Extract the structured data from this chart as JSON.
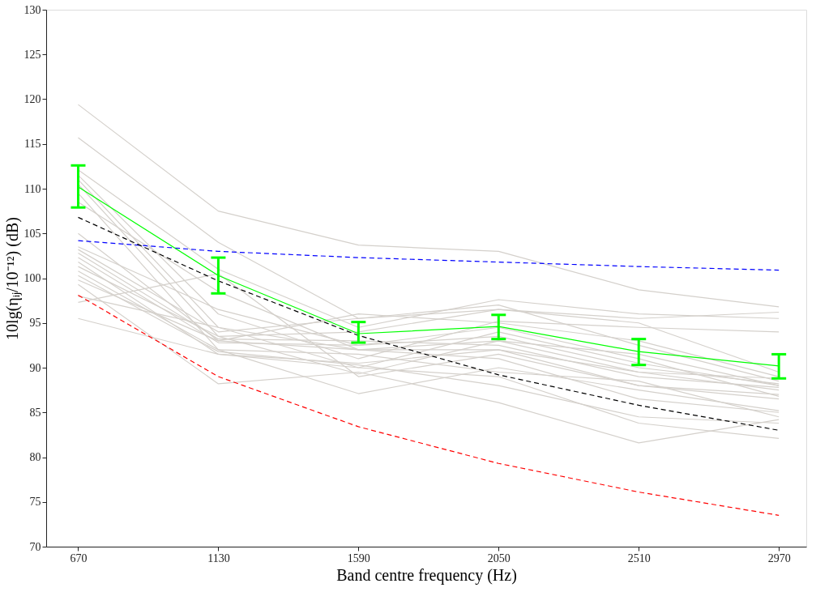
{
  "chart_data": {
    "type": "line",
    "xlabel": "Band centre frequency (Hz)",
    "ylabel": "10lg(ηᵢⱼ/10⁻¹²) (dB)",
    "x": [
      670,
      1130,
      1590,
      2050,
      2510,
      2970
    ],
    "xlim": [
      565,
      3060
    ],
    "xticks": [
      670,
      1130,
      1590,
      2050,
      2510,
      2970
    ],
    "ylim": [
      70,
      130
    ],
    "yticks": [
      70,
      75,
      80,
      85,
      90,
      95,
      100,
      105,
      110,
      115,
      120,
      125,
      130
    ],
    "grid": false,
    "legend": false,
    "marker": "none",
    "series": [
      {
        "color": "#d4d0cb",
        "line_style": "solid",
        "values": [
          119.4,
          107.5,
          103.7,
          103.0,
          98.7,
          96.8
        ]
      },
      {
        "color": "#d4d0cb",
        "line_style": "solid",
        "values": [
          115.7,
          104.0,
          95.5,
          96.5,
          95.5,
          96.2
        ]
      },
      {
        "color": "#d4d0cb",
        "line_style": "solid",
        "values": [
          112.1,
          101.0,
          94.5,
          97.6,
          96.0,
          95.5
        ]
      },
      {
        "color": "#d4d0cb",
        "line_style": "solid",
        "values": [
          111.5,
          96.0,
          91.0,
          95.2,
          94.5,
          94.0
        ]
      },
      {
        "color": "#d4d0cb",
        "line_style": "solid",
        "values": [
          111.0,
          94.5,
          90.0,
          94.0,
          90.5,
          88.0
        ]
      },
      {
        "color": "#d4d0cb",
        "line_style": "solid",
        "values": [
          110.5,
          93.5,
          89.3,
          93.0,
          89.5,
          87.5
        ]
      },
      {
        "color": "#d4d0cb",
        "line_style": "solid",
        "values": [
          109.5,
          92.0,
          87.1,
          90.0,
          87.5,
          85.2
        ]
      },
      {
        "color": "#d4d0cb",
        "line_style": "solid",
        "values": [
          105.0,
          93.0,
          96.0,
          95.0,
          93.0,
          89.0
        ]
      },
      {
        "color": "#d4d0cb",
        "line_style": "solid",
        "values": [
          103.2,
          94.0,
          95.5,
          97.0,
          92.5,
          88.5
        ]
      },
      {
        "color": "#d4d0cb",
        "line_style": "solid",
        "values": [
          102.8,
          93.2,
          93.0,
          92.5,
          89.0,
          87.8
        ]
      },
      {
        "color": "#d4d0cb",
        "line_style": "solid",
        "values": [
          102.3,
          92.8,
          92.5,
          93.5,
          90.0,
          88.2
        ]
      },
      {
        "color": "#d4d0cb",
        "line_style": "solid",
        "values": [
          101.8,
          91.5,
          90.5,
          92.0,
          88.0,
          86.5
        ]
      },
      {
        "color": "#d4d0cb",
        "line_style": "solid",
        "values": [
          101.3,
          93.5,
          94.0,
          96.5,
          95.0,
          89.5
        ]
      },
      {
        "color": "#d4d0cb",
        "line_style": "solid",
        "values": [
          100.8,
          92.0,
          91.5,
          89.5,
          88.5,
          84.5
        ]
      },
      {
        "color": "#d4d0cb",
        "line_style": "solid",
        "values": [
          100.3,
          91.8,
          90.3,
          88.0,
          84.5,
          83.8
        ]
      },
      {
        "color": "#d4d0cb",
        "line_style": "solid",
        "values": [
          99.8,
          93.0,
          92.0,
          91.0,
          86.5,
          85.0
        ]
      },
      {
        "color": "#d4d0cb",
        "line_style": "solid",
        "values": [
          99.3,
          88.2,
          89.5,
          86.1,
          81.6,
          84.2
        ]
      },
      {
        "color": "#d4d0cb",
        "line_style": "solid",
        "values": [
          98.0,
          94.5,
          92.0,
          92.0,
          89.5,
          88.8
        ]
      },
      {
        "color": "#d4d0cb",
        "line_style": "solid",
        "values": [
          97.3,
          100.5,
          89.0,
          91.5,
          88.0,
          87.0
        ]
      },
      {
        "color": "#d4d0cb",
        "line_style": "solid",
        "values": [
          95.5,
          91.5,
          90.0,
          89.0,
          83.8,
          82.1
        ]
      },
      {
        "color": "#d4d0cb",
        "line_style": "solid",
        "values": [
          103.5,
          96.5,
          92.5,
          94.5,
          91.0,
          86.8
        ]
      },
      {
        "color": "#d4d0cb",
        "line_style": "solid",
        "values": [
          108.5,
          98.5,
          92.0,
          93.0,
          91.5,
          88.0
        ]
      },
      {
        "color": "#0000ff",
        "line_style": "dashed",
        "values": [
          104.2,
          103.0,
          102.3,
          101.8,
          101.3,
          100.9
        ]
      },
      {
        "color": "#ff0000",
        "line_style": "dashed",
        "values": [
          98.1,
          89.0,
          83.4,
          79.3,
          76.1,
          73.5
        ]
      },
      {
        "color": "#000000",
        "line_style": "dashed",
        "values": [
          106.8,
          99.7,
          93.6,
          89.2,
          85.8,
          83.0
        ]
      },
      {
        "color": "#00ff00",
        "line_style": "solid",
        "values": [
          110.2,
          100.3,
          93.8,
          94.6,
          91.8,
          90.2
        ],
        "errors": [
          [
            107.9,
            112.6
          ],
          [
            98.3,
            102.3
          ],
          [
            92.8,
            95.1
          ],
          [
            93.2,
            95.9
          ],
          [
            90.3,
            93.2
          ],
          [
            88.8,
            91.5
          ]
        ]
      }
    ]
  }
}
